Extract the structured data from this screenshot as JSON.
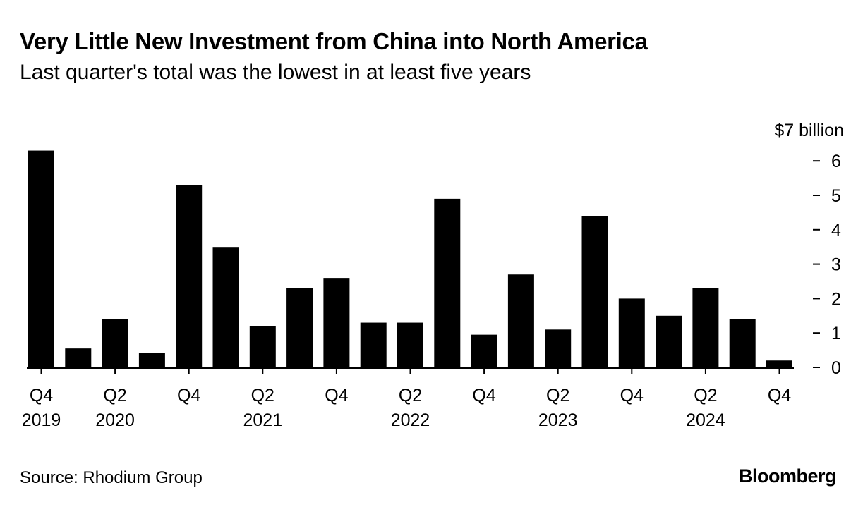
{
  "header": {
    "title": "Very Little New Investment from China into North America",
    "subtitle": "Last quarter's total was the lowest in at least five years"
  },
  "footer": {
    "source": "Source: Rhodium Group",
    "brand": "Bloomberg"
  },
  "colors": {
    "bar": "#000000",
    "text": "#000000",
    "background": "#ffffff"
  },
  "chart_data": {
    "type": "bar",
    "title": "Very Little New Investment from China into North America",
    "subtitle": "Last quarter's total was the lowest in at least five years",
    "xlabel": "",
    "ylabel": "$7 billion",
    "y_axis_position": "right",
    "ylim": [
      0,
      7
    ],
    "yticks": [
      0,
      1,
      2,
      3,
      4,
      5,
      6
    ],
    "ytick_labels": [
      "0",
      "1",
      "2",
      "3",
      "4",
      "5",
      "6"
    ],
    "y_unit_label": "$7 billion",
    "grid": false,
    "categories": [
      "Q4 2019",
      "Q1 2020",
      "Q2 2020",
      "Q3 2020",
      "Q4 2020",
      "Q1 2021",
      "Q2 2021",
      "Q3 2021",
      "Q4 2021",
      "Q1 2022",
      "Q2 2022",
      "Q3 2022",
      "Q4 2022",
      "Q1 2023",
      "Q2 2023",
      "Q3 2023",
      "Q4 2023",
      "Q1 2024",
      "Q2 2024",
      "Q3 2024",
      "Q4 2024"
    ],
    "values": [
      6.3,
      0.55,
      1.4,
      0.42,
      5.3,
      3.5,
      1.2,
      2.3,
      2.6,
      1.3,
      1.3,
      4.9,
      0.95,
      2.7,
      1.1,
      4.4,
      2.0,
      1.5,
      2.3,
      1.4,
      0.2
    ],
    "x_tick_labels": [
      {
        "index": 0,
        "quarter": "Q4",
        "year": "2019"
      },
      {
        "index": 2,
        "quarter": "Q2",
        "year": "2020"
      },
      {
        "index": 4,
        "quarter": "Q4",
        "year": ""
      },
      {
        "index": 6,
        "quarter": "Q2",
        "year": "2021"
      },
      {
        "index": 8,
        "quarter": "Q4",
        "year": ""
      },
      {
        "index": 10,
        "quarter": "Q2",
        "year": "2022"
      },
      {
        "index": 12,
        "quarter": "Q4",
        "year": ""
      },
      {
        "index": 14,
        "quarter": "Q2",
        "year": "2023"
      },
      {
        "index": 16,
        "quarter": "Q4",
        "year": ""
      },
      {
        "index": 18,
        "quarter": "Q2",
        "year": "2024"
      },
      {
        "index": 20,
        "quarter": "Q4",
        "year": ""
      }
    ]
  }
}
